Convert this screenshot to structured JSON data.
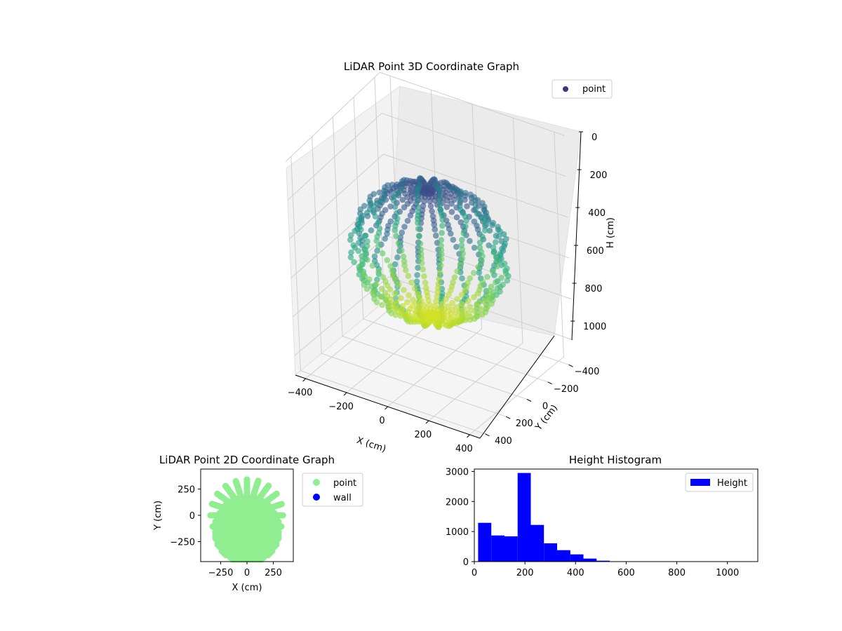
{
  "chart_data": [
    {
      "type": "scatter3d",
      "title": "LiDAR Point 3D Coordinate Graph",
      "xlabel": "X (cm)",
      "ylabel": "Y (cm)",
      "zlabel": "H (cm)",
      "x_ticks": [
        "−400",
        "−200",
        "0",
        "200",
        "400"
      ],
      "y_ticks": [
        "−400",
        "−200",
        "0",
        "200",
        "400"
      ],
      "z_ticks": [
        "0",
        "200",
        "400",
        "600",
        "800",
        "1000"
      ],
      "xlim": [
        -450,
        450
      ],
      "ylim": [
        -450,
        450
      ],
      "zlim": [
        0,
        1100
      ],
      "z_inverted": true,
      "colormap": "viridis",
      "legend": {
        "position": "top-right",
        "entries": [
          {
            "label": "point",
            "color": "#46337e"
          }
        ]
      },
      "grid": true,
      "shape": {
        "description_values": {
          "sphere_center_z": 525,
          "sphere_radius": 330,
          "rings": 20
        }
      }
    },
    {
      "type": "scatter",
      "title": "LiDAR Point 2D Coordinate Graph",
      "xlabel": "X (cm)",
      "ylabel": "Y (cm)",
      "x_ticks": [
        "−250",
        "0",
        "250"
      ],
      "y_ticks": [
        "250",
        "0",
        "−250"
      ],
      "xlim": [
        -440,
        440
      ],
      "ylim": [
        -440,
        440
      ],
      "legend": {
        "position": "outside-right",
        "entries": [
          {
            "label": "point",
            "color": "#90ee90"
          },
          {
            "label": "wall",
            "color": "#0000ff"
          }
        ]
      },
      "series": [
        {
          "name": "point",
          "color": "#90ee90"
        },
        {
          "name": "wall",
          "color": "#0000ff"
        }
      ]
    },
    {
      "type": "bar",
      "title": "Height Histogram",
      "xlabel": "",
      "ylabel": "",
      "x_ticks": [
        "0",
        "200",
        "400",
        "600",
        "800",
        "1000"
      ],
      "y_ticks": [
        "0",
        "1000",
        "2000",
        "3000"
      ],
      "xlim": [
        0,
        1120
      ],
      "ylim": [
        0,
        3080
      ],
      "bin_width": 52,
      "bin_edges_start": 15,
      "values": [
        1290,
        870,
        840,
        2950,
        1220,
        610,
        380,
        240,
        100,
        30,
        8,
        5,
        3,
        2,
        2,
        1,
        1,
        1,
        1,
        1
      ],
      "legend": {
        "position": "top-right",
        "entries": [
          {
            "label": "Height",
            "color": "#0000ff"
          }
        ]
      },
      "series": [
        {
          "name": "Height",
          "color": "#0000ff"
        }
      ]
    }
  ]
}
